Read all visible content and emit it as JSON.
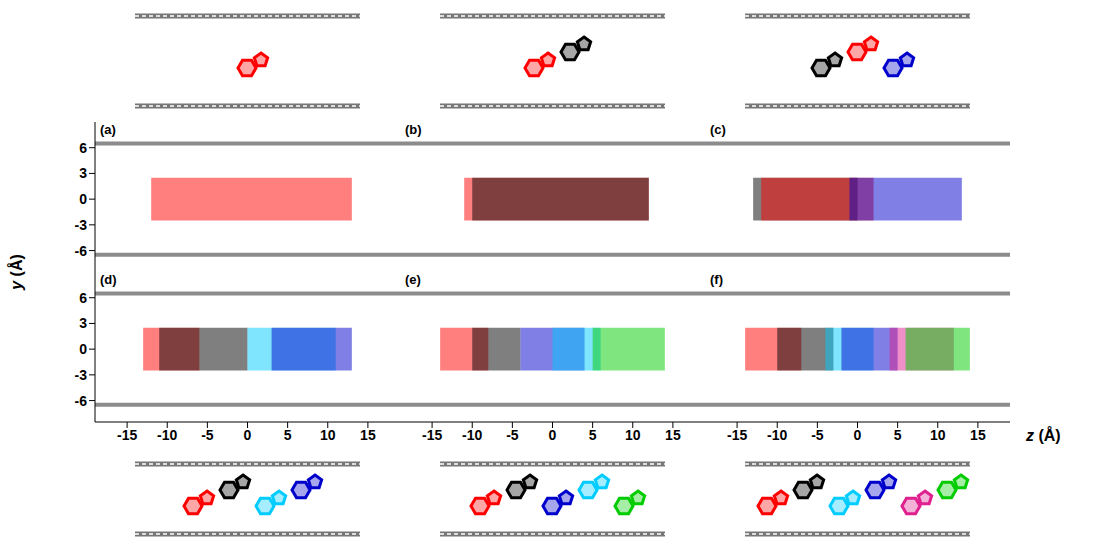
{
  "xlabel": "z (Å)",
  "ylabel": "y (Å)",
  "chart_data": [
    {
      "type": "scatter",
      "label": "(a)",
      "xlim": [
        -19,
        19
      ],
      "ylim": [
        -8.5,
        9
      ],
      "xticks": [
        -15,
        -10,
        -5,
        0,
        5,
        10,
        15
      ],
      "yticks": [
        -6,
        -3,
        0,
        3,
        6
      ],
      "tick_labels": "y",
      "graphene_y": [
        6.5,
        -6.5
      ],
      "series": [
        {
          "color": "#ff0000",
          "x_range": [
            -12,
            13
          ],
          "y_range": [
            -2.5,
            2.5
          ]
        }
      ]
    },
    {
      "type": "scatter",
      "label": "(b)",
      "xlim": [
        -19,
        19
      ],
      "ylim": [
        -8.5,
        9
      ],
      "xticks": [
        -15,
        -10,
        -5,
        0,
        5,
        10,
        15
      ],
      "yticks": [
        -6,
        -3,
        0,
        3,
        6
      ],
      "tick_labels": false,
      "graphene_y": [
        6.5,
        -6.5
      ],
      "series": [
        {
          "color": "#ff0000",
          "x_range": [
            -11,
            12
          ],
          "y_range": [
            -2.5,
            2.5
          ]
        },
        {
          "color": "#000000",
          "x_range": [
            -10,
            12
          ],
          "y_range": [
            -2.5,
            2.5
          ]
        }
      ]
    },
    {
      "type": "scatter",
      "label": "(c)",
      "xlim": [
        -19,
        19
      ],
      "ylim": [
        -8.5,
        9
      ],
      "xticks": [
        -15,
        -10,
        -5,
        0,
        5,
        10,
        15
      ],
      "yticks": [
        -6,
        -3,
        0,
        3,
        6
      ],
      "tick_labels": false,
      "graphene_y": [
        6.5,
        -6.5
      ],
      "series": [
        {
          "color": "#000000",
          "x_range": [
            -13,
            0
          ],
          "y_range": [
            -2.5,
            2.5
          ]
        },
        {
          "color": "#ff0000",
          "x_range": [
            -12,
            2
          ],
          "y_range": [
            -2.5,
            2.5
          ]
        },
        {
          "color": "#0000cc",
          "x_range": [
            -1,
            13
          ],
          "y_range": [
            -2.5,
            2.5
          ]
        }
      ]
    },
    {
      "type": "scatter",
      "label": "(d)",
      "xlim": [
        -19,
        19
      ],
      "ylim": [
        -8.5,
        9
      ],
      "xticks": [
        -15,
        -10,
        -5,
        0,
        5,
        10,
        15
      ],
      "yticks": [
        -6,
        -3,
        0,
        3,
        6
      ],
      "graphene_y": [
        6.5,
        -6.5
      ],
      "series": [
        {
          "color": "#ff0000",
          "x_range": [
            -13,
            -6
          ],
          "y_range": [
            -2.5,
            2.5
          ]
        },
        {
          "color": "#000000",
          "x_range": [
            -11,
            0
          ],
          "y_range": [
            -2.5,
            2.5
          ]
        },
        {
          "color": "#00ccff",
          "x_range": [
            0,
            11
          ],
          "y_range": [
            -2.5,
            2.5
          ]
        },
        {
          "color": "#0000cc",
          "x_range": [
            3,
            13
          ],
          "y_range": [
            -2.5,
            2.5
          ]
        }
      ]
    },
    {
      "type": "scatter",
      "label": "(e)",
      "xlim": [
        -19,
        19
      ],
      "ylim": [
        -8.5,
        9
      ],
      "xticks": [
        -15,
        -10,
        -5,
        0,
        5,
        10,
        15
      ],
      "yticks": [
        -6,
        -3,
        0,
        3,
        6
      ],
      "tick_labels": "x",
      "graphene_y": [
        6.5,
        -6.5
      ],
      "series": [
        {
          "color": "#ff0000",
          "x_range": [
            -14,
            -8
          ],
          "y_range": [
            -2.5,
            2.5
          ]
        },
        {
          "color": "#000000",
          "x_range": [
            -10,
            -4
          ],
          "y_range": [
            -2.5,
            2.5
          ]
        },
        {
          "color": "#0000cc",
          "x_range": [
            -4,
            4
          ],
          "y_range": [
            -2.5,
            2.5
          ]
        },
        {
          "color": "#00ccff",
          "x_range": [
            0,
            6
          ],
          "y_range": [
            -2.5,
            2.5
          ]
        },
        {
          "color": "#00cc00",
          "x_range": [
            5,
            14
          ],
          "y_range": [
            -2.5,
            2.5
          ]
        }
      ]
    },
    {
      "type": "scatter",
      "label": "(f)",
      "xlim": [
        -19,
        19
      ],
      "ylim": [
        -8.5,
        9
      ],
      "xticks": [
        -15,
        -10,
        -5,
        0,
        5,
        10,
        15
      ],
      "yticks": [
        -6,
        -3,
        0,
        3,
        6
      ],
      "tick_labels": "x",
      "graphene_y": [
        6.5,
        -6.5
      ],
      "series": [
        {
          "color": "#ff0000",
          "x_range": [
            -14,
            -7
          ],
          "y_range": [
            -2.5,
            2.5
          ]
        },
        {
          "color": "#000000",
          "x_range": [
            -10,
            -3
          ],
          "y_range": [
            -2.5,
            2.5
          ]
        },
        {
          "color": "#00ccff",
          "x_range": [
            -4,
            2
          ],
          "y_range": [
            -2.5,
            2.5
          ]
        },
        {
          "color": "#0000cc",
          "x_range": [
            -2,
            5
          ],
          "y_range": [
            -2.5,
            2.5
          ]
        },
        {
          "color": "#e0208f",
          "x_range": [
            4,
            12
          ],
          "y_range": [
            -2.5,
            2.5
          ]
        },
        {
          "color": "#00cc00",
          "x_range": [
            6,
            14
          ],
          "y_range": [
            -2.5,
            2.5
          ]
        }
      ]
    }
  ]
}
